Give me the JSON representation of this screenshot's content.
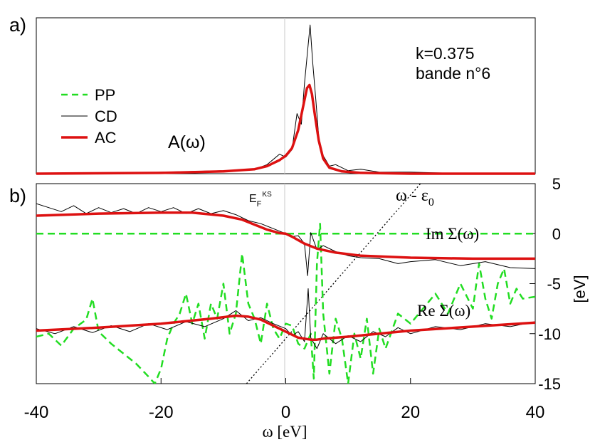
{
  "chart_data": [
    {
      "panel_label": "a)",
      "type": "line",
      "x_domain": [
        -40,
        40
      ],
      "y_domain": [
        0,
        1.0
      ],
      "annotations": {
        "k_label": "k=0.375",
        "band_label": "bande n°6",
        "function_label": "A(ω)"
      },
      "legend": {
        "placement": "left",
        "entries": [
          {
            "name": "PP",
            "color": "#22dd22",
            "style": "dashed"
          },
          {
            "name": "CD",
            "color": "#000000",
            "style": "thin"
          },
          {
            "name": "AC",
            "color": "#dd1111",
            "style": "thick"
          }
        ]
      },
      "series": [
        {
          "name": "CD",
          "color": "#000000",
          "x": [
            -40,
            -30,
            -20,
            -10,
            -5,
            -3,
            -1,
            0,
            1,
            1.8,
            2.5,
            3,
            3.5,
            3.9,
            4.3,
            4.8,
            5.3,
            6,
            7,
            8,
            10,
            12,
            15,
            20,
            30,
            40
          ],
          "y": [
            0,
            0,
            0.01,
            0.02,
            0.03,
            0.06,
            0.13,
            0.11,
            0.16,
            0.4,
            0.33,
            0.6,
            0.82,
            0.99,
            0.75,
            0.5,
            0.24,
            0.12,
            0.05,
            0.06,
            0.02,
            0.03,
            0.01,
            0.01,
            0.0,
            0.0
          ]
        },
        {
          "name": "AC",
          "color": "#dd1111",
          "x": [
            -40,
            -20,
            -10,
            -5,
            -3,
            -1,
            0,
            1,
            2,
            2.8,
            3.4,
            3.8,
            4.2,
            4.7,
            5.3,
            6,
            7,
            9,
            12,
            20,
            40
          ],
          "y": [
            0,
            0.005,
            0.015,
            0.03,
            0.05,
            0.09,
            0.12,
            0.17,
            0.29,
            0.45,
            0.57,
            0.59,
            0.53,
            0.38,
            0.22,
            0.1,
            0.04,
            0.015,
            0.005,
            0,
            0
          ]
        }
      ]
    },
    {
      "panel_label": "b)",
      "type": "line",
      "x_domain": [
        -40,
        40
      ],
      "y_domain": [
        -15,
        5
      ],
      "xlabel": "ω [eV]",
      "ylabel": "[eV]",
      "x_ticks": [
        -40,
        -20,
        0,
        20,
        40
      ],
      "y_ticks": [
        5,
        0,
        -5,
        -10,
        -15
      ],
      "annotations": {
        "fermi_label": "E",
        "fermi_sub": "F",
        "fermi_sup": "KS",
        "omega_eps_label": "ω - ε",
        "omega_eps_sub": "0",
        "im_sigma_label": "Im Σ(ω)",
        "re_sigma_label": "Re Σ(ω)"
      },
      "series": [
        {
          "name": "Im Σ AC",
          "color": "#dd1111",
          "x": [
            -40,
            -30,
            -20,
            -15,
            -10,
            -7,
            -5,
            -3,
            -1,
            0,
            1,
            3,
            5,
            8,
            12,
            20,
            30,
            40
          ],
          "y": [
            1.8,
            2.0,
            2.1,
            2.1,
            1.8,
            1.4,
            0.9,
            0.4,
            0.05,
            0,
            -0.3,
            -1.0,
            -1.5,
            -1.9,
            -2.2,
            -2.4,
            -2.5,
            -2.5
          ]
        },
        {
          "name": "Im Σ CD",
          "color": "#000000",
          "x": [
            -40,
            -38,
            -36,
            -34,
            -32,
            -30,
            -28,
            -26,
            -24,
            -22,
            -20,
            -18,
            -16,
            -14,
            -12,
            -10,
            -8,
            -6,
            -4,
            -2,
            0,
            1,
            2,
            3,
            3.5,
            4,
            5,
            6,
            8,
            10,
            12,
            15,
            18,
            20,
            24,
            28,
            32,
            36,
            40
          ],
          "y": [
            3.0,
            2.6,
            2.2,
            2.8,
            2.0,
            2.6,
            2.1,
            2.5,
            2.0,
            2.6,
            2.2,
            2.6,
            2.0,
            2.5,
            2.0,
            2.3,
            1.9,
            1.3,
            1.0,
            0.5,
            0.0,
            -0.3,
            -0.2,
            -1.0,
            -4.2,
            0.1,
            -1.6,
            -1.2,
            -1.8,
            -2.2,
            -2.4,
            -2.5,
            -3.0,
            -2.8,
            -2.6,
            -3.2,
            -2.8,
            -3.4,
            -3.5
          ]
        },
        {
          "name": "Im Σ PP",
          "color": "#22dd22",
          "x": [
            -40,
            40
          ],
          "y": [
            0,
            0
          ]
        },
        {
          "name": "Re Σ AC",
          "color": "#dd1111",
          "x": [
            -40,
            -30,
            -20,
            -12,
            -8,
            -6,
            -4,
            -2,
            0,
            1,
            2,
            3,
            4,
            5,
            6,
            8,
            10,
            15,
            20,
            30,
            40
          ],
          "y": [
            -9.7,
            -9.4,
            -9.0,
            -8.5,
            -8.2,
            -8.3,
            -8.6,
            -9.2,
            -9.8,
            -10.1,
            -10.4,
            -10.5,
            -10.6,
            -10.6,
            -10.5,
            -10.4,
            -10.3,
            -10.0,
            -9.7,
            -9.3,
            -8.9
          ]
        },
        {
          "name": "Re Σ CD",
          "color": "#000000",
          "x": [
            -40,
            -37,
            -34,
            -31,
            -28,
            -25,
            -22,
            -19,
            -16,
            -13,
            -10,
            -8,
            -6,
            -4,
            -2,
            0,
            1,
            2,
            3,
            3.6,
            4,
            5,
            6,
            8,
            10,
            12,
            14,
            16,
            18,
            20,
            24,
            28,
            32,
            36,
            40
          ],
          "y": [
            -9.5,
            -10.0,
            -9.3,
            -9.9,
            -9.2,
            -9.8,
            -9.0,
            -9.6,
            -8.8,
            -9.3,
            -8.5,
            -7.7,
            -8.7,
            -8.4,
            -9.0,
            -9.5,
            -10.2,
            -9.8,
            -10.8,
            -5.5,
            -10.4,
            -11.5,
            -10.0,
            -11.0,
            -10.2,
            -10.8,
            -9.8,
            -10.3,
            -9.4,
            -10.0,
            -9.3,
            -9.6,
            -9.0,
            -9.3,
            -8.8
          ]
        },
        {
          "name": "Re Σ PP",
          "color": "#22dd22",
          "x": [
            -40,
            -38,
            -36,
            -34,
            -32,
            -31,
            -30,
            -28,
            -26,
            -24,
            -22,
            -21,
            -20,
            -19,
            -18,
            -17,
            -16,
            -15,
            -14,
            -13,
            -12,
            -11,
            -10,
            -9,
            -8,
            -7,
            -6,
            -5,
            -4,
            -3,
            -2,
            -1,
            0,
            1,
            2,
            3,
            4,
            4.5,
            5,
            5.5,
            6,
            7,
            8,
            9,
            10,
            11,
            12,
            13,
            14,
            15,
            16,
            18,
            20,
            22,
            24,
            26,
            28,
            30,
            31,
            32,
            33,
            34,
            35,
            36,
            37,
            38,
            40
          ],
          "y": [
            -10.3,
            -10.0,
            -11.2,
            -9.5,
            -8.6,
            -6.5,
            -9.8,
            -11.0,
            -12.0,
            -13.0,
            -14.3,
            -15.0,
            -13.5,
            -10.5,
            -9.0,
            -8.0,
            -6.0,
            -9.0,
            -7.0,
            -10.5,
            -7.0,
            -8.5,
            -5.0,
            -10.0,
            -8.0,
            -2.0,
            -7.0,
            -8.5,
            -11.0,
            -7.0,
            -9.5,
            -10.5,
            -9.0,
            -9.2,
            -11.0,
            -11.5,
            -10.0,
            -14.5,
            -3.0,
            1.0,
            -8.0,
            -14.0,
            -8.5,
            -10.5,
            -15.0,
            -10.0,
            -12.5,
            -8.5,
            -14.0,
            -9.5,
            -11.5,
            -8.0,
            -9.0,
            -7.5,
            -6.0,
            -8.0,
            -5.0,
            -7.5,
            -3.0,
            -6.5,
            -8.5,
            -5.0,
            -3.5,
            -7.0,
            -5.5,
            -6.5,
            -6.3
          ]
        },
        {
          "name": "ω - ε0",
          "color": "#000000",
          "style": "dotted",
          "x": [
            -6.3,
            21.6
          ],
          "y": [
            -15,
            5
          ]
        }
      ]
    }
  ]
}
